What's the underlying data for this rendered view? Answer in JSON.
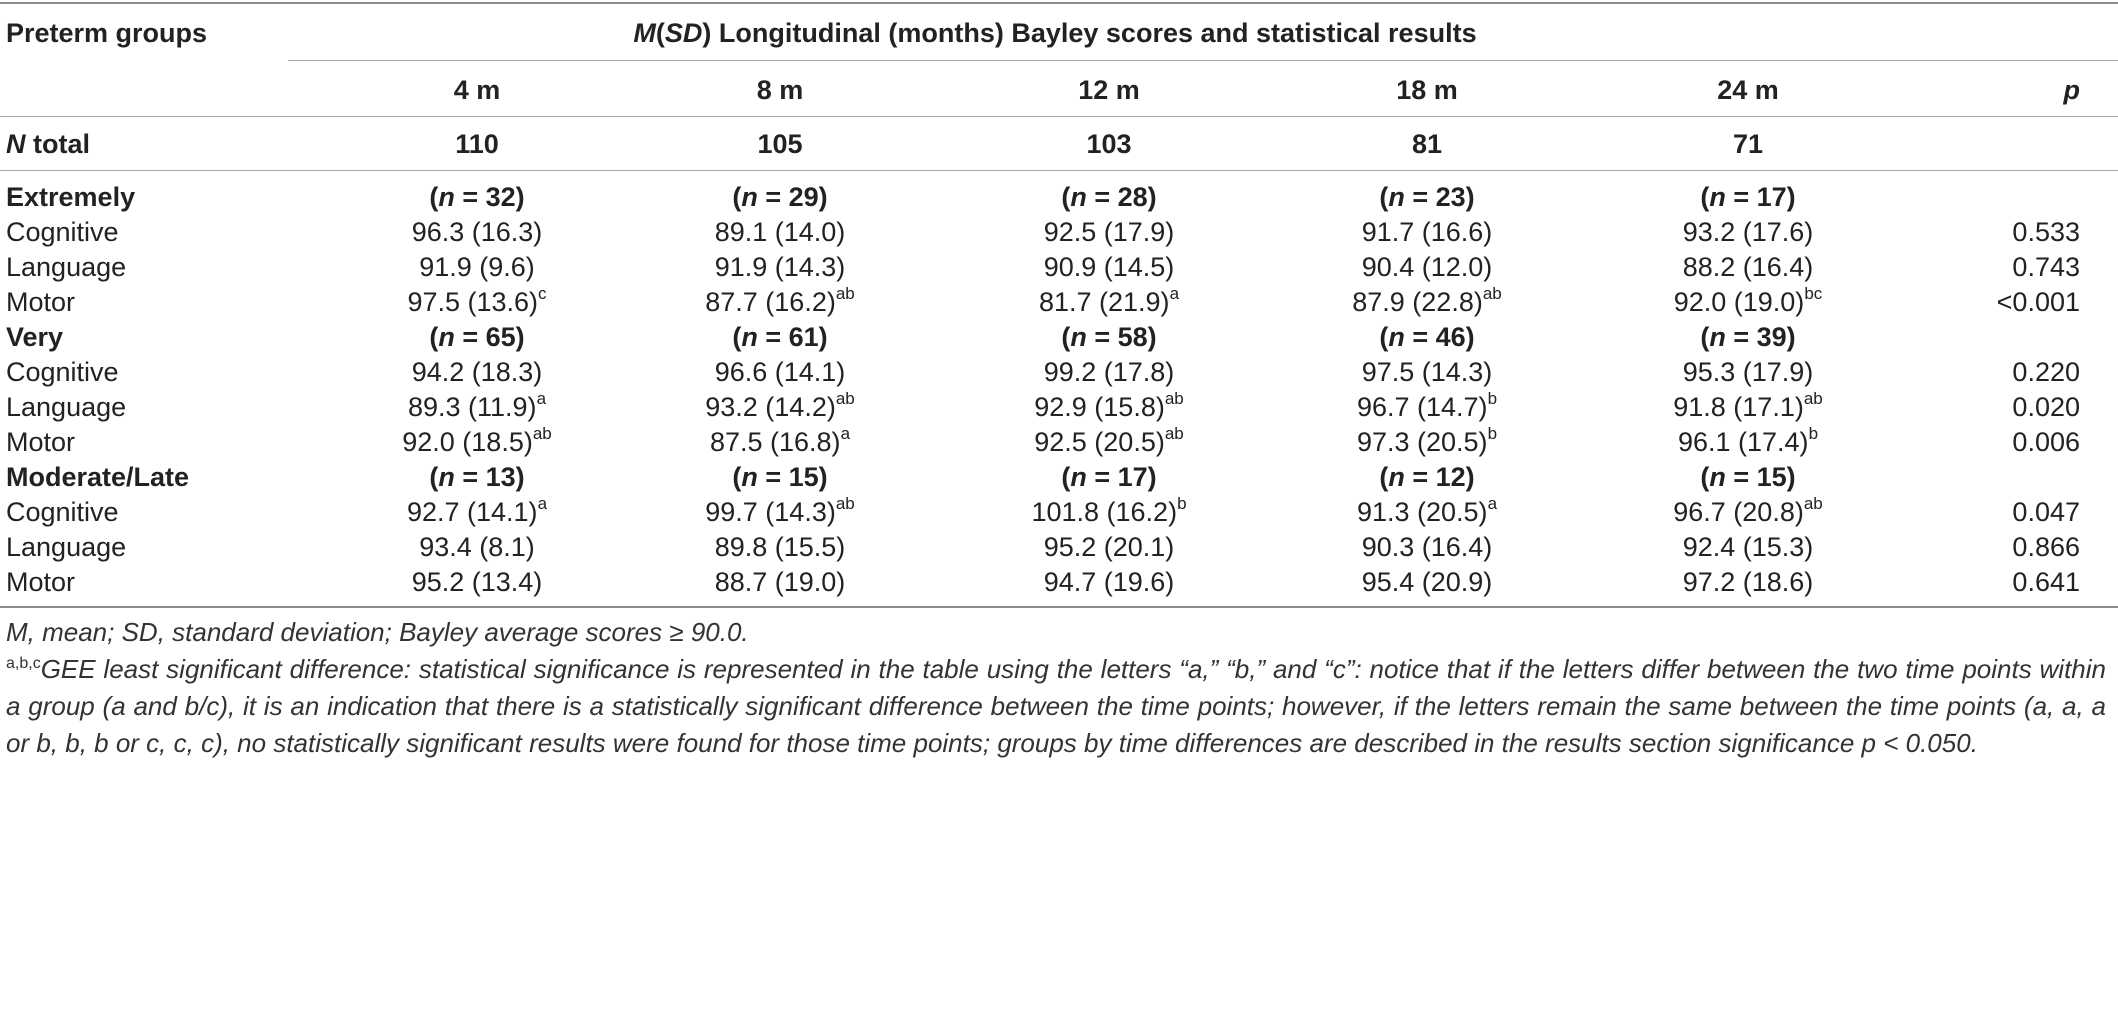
{
  "header": {
    "group_col": "Preterm groups",
    "title_prefix_m": "M",
    "title_paren_open": "(",
    "title_sd": "SD",
    "title_rest": ") Longitudinal (months) Bayley scores and statistical results",
    "times": [
      "4 m",
      "8 m",
      "12 m",
      "18 m",
      "24 m"
    ],
    "p_col": "p"
  },
  "totals": {
    "n_label": "N",
    "total_label": " total",
    "values": [
      "110",
      "105",
      "103",
      "81",
      "71"
    ]
  },
  "groups": [
    {
      "name": "Extremely",
      "ns": [
        "32",
        "29",
        "28",
        "23",
        "17"
      ],
      "rows": [
        {
          "label": "Cognitive",
          "cells": [
            {
              "v": "96.3 (16.3)",
              "s": ""
            },
            {
              "v": "89.1 (14.0)",
              "s": ""
            },
            {
              "v": "92.5 (17.9)",
              "s": ""
            },
            {
              "v": "91.7 (16.6)",
              "s": ""
            },
            {
              "v": "93.2 (17.6)",
              "s": ""
            }
          ],
          "p": "0.533"
        },
        {
          "label": "Language",
          "cells": [
            {
              "v": "91.9 (9.6)",
              "s": ""
            },
            {
              "v": "91.9 (14.3)",
              "s": ""
            },
            {
              "v": "90.9 (14.5)",
              "s": ""
            },
            {
              "v": "90.4 (12.0)",
              "s": ""
            },
            {
              "v": "88.2 (16.4)",
              "s": ""
            }
          ],
          "p": "0.743"
        },
        {
          "label": "Motor",
          "cells": [
            {
              "v": "97.5 (13.6)",
              "s": "c"
            },
            {
              "v": "87.7 (16.2)",
              "s": "ab"
            },
            {
              "v": "81.7 (21.9)",
              "s": "a"
            },
            {
              "v": "87.9 (22.8)",
              "s": "ab"
            },
            {
              "v": "92.0 (19.0)",
              "s": "bc"
            }
          ],
          "p": "<0.001"
        }
      ]
    },
    {
      "name": "Very",
      "ns": [
        "65",
        "61",
        "58",
        "46",
        "39"
      ],
      "rows": [
        {
          "label": "Cognitive",
          "cells": [
            {
              "v": "94.2 (18.3)",
              "s": ""
            },
            {
              "v": "96.6 (14.1)",
              "s": ""
            },
            {
              "v": "99.2 (17.8)",
              "s": ""
            },
            {
              "v": "97.5 (14.3)",
              "s": ""
            },
            {
              "v": "95.3 (17.9)",
              "s": ""
            }
          ],
          "p": "0.220"
        },
        {
          "label": "Language",
          "cells": [
            {
              "v": "89.3 (11.9)",
              "s": "a"
            },
            {
              "v": "93.2 (14.2)",
              "s": "ab"
            },
            {
              "v": "92.9 (15.8)",
              "s": "ab"
            },
            {
              "v": "96.7 (14.7)",
              "s": "b"
            },
            {
              "v": "91.8 (17.1)",
              "s": "ab"
            }
          ],
          "p": "0.020"
        },
        {
          "label": "Motor",
          "cells": [
            {
              "v": "92.0 (18.5)",
              "s": "ab"
            },
            {
              "v": "87.5 (16.8)",
              "s": "a"
            },
            {
              "v": "92.5 (20.5)",
              "s": "ab"
            },
            {
              "v": "97.3 (20.5)",
              "s": "b"
            },
            {
              "v": "96.1 (17.4)",
              "s": "b"
            }
          ],
          "p": "0.006"
        }
      ]
    },
    {
      "name": "Moderate/Late",
      "ns": [
        "13",
        "15",
        "17",
        "12",
        "15"
      ],
      "rows": [
        {
          "label": "Cognitive",
          "cells": [
            {
              "v": "92.7 (14.1)",
              "s": "a"
            },
            {
              "v": "99.7 (14.3)",
              "s": "ab"
            },
            {
              "v": "101.8 (16.2)",
              "s": "b"
            },
            {
              "v": "91.3 (20.5)",
              "s": "a"
            },
            {
              "v": "96.7 (20.8)",
              "s": "ab"
            }
          ],
          "p": "0.047"
        },
        {
          "label": "Language",
          "cells": [
            {
              "v": "93.4 (8.1)",
              "s": ""
            },
            {
              "v": "89.8 (15.5)",
              "s": ""
            },
            {
              "v": "95.2 (20.1)",
              "s": ""
            },
            {
              "v": "90.3 (16.4)",
              "s": ""
            },
            {
              "v": "92.4 (15.3)",
              "s": ""
            }
          ],
          "p": "0.866"
        },
        {
          "label": "Motor",
          "cells": [
            {
              "v": "95.2 (13.4)",
              "s": ""
            },
            {
              "v": "88.7 (19.0)",
              "s": ""
            },
            {
              "v": "94.7 (19.6)",
              "s": ""
            },
            {
              "v": "95.4 (20.9)",
              "s": ""
            },
            {
              "v": "97.2 (18.6)",
              "s": ""
            }
          ],
          "p": "0.641"
        }
      ]
    }
  ],
  "n_prefix": "(",
  "n_letter": "n",
  "n_eq": " = ",
  "n_suffix": ")",
  "notes": {
    "line1": "M, mean; SD, standard deviation; Bayley average scores ≥ 90.0.",
    "line2_sup": "a,b,c",
    "line2": "GEE least significant difference: statistical significance is represented in the table using the letters “a,” “b,” and “c”: notice that if the letters differ between the two time points within a group (a and b/c), it is an indication that there is a statistically significant difference between the time points; however, if the letters remain the same between the time points (a, a, a or b, b, b or c, c, c), no statistically significant results were found for those time points; groups by time differences are described in the results section significance p < 0.050."
  }
}
